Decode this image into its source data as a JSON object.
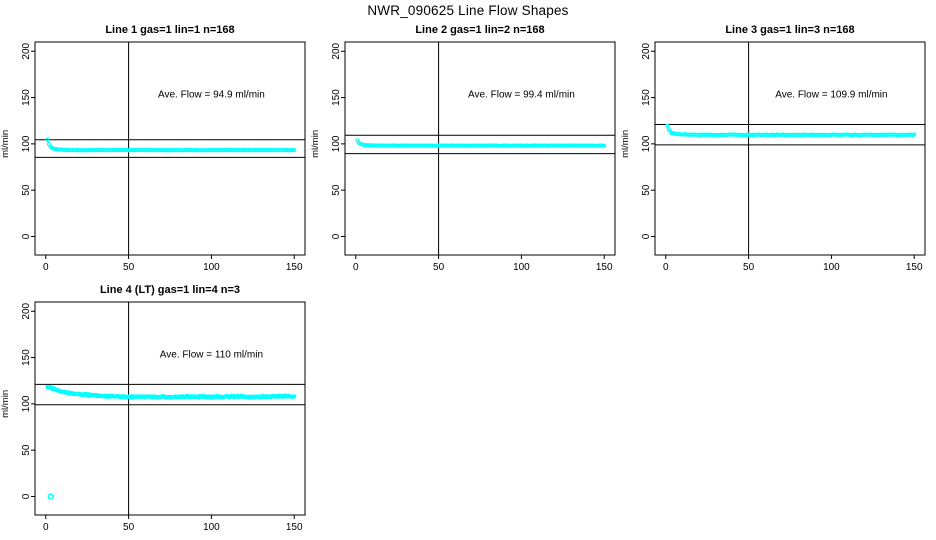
{
  "page_title": "NWR_090625  Line Flow Shapes",
  "colors": {
    "background": "#FFFFFF",
    "axis": "#000000",
    "points": "#00FFFF"
  },
  "chart_data": [
    {
      "type": "scatter",
      "title": "Line 1 gas=1 lin=1 n=168",
      "annotation": "Ave. Flow =  94.9  ml/min",
      "annotation_pos": [
        100,
        150
      ],
      "ave_flow": 94.9,
      "n": 168,
      "ylabel": "ml/min",
      "xlabel": "",
      "xlim": [
        -6.5,
        156.5
      ],
      "ylim": [
        -20,
        210
      ],
      "xticks": [
        0,
        50,
        100,
        150
      ],
      "yticks": [
        0,
        50,
        100,
        150,
        200
      ],
      "vline_x": 50,
      "hlines": [
        104.4,
        85.4
      ],
      "marker_color": "#00FFFF",
      "x_start": 1,
      "x_end": 150,
      "n_points": 168,
      "noise": 0.35,
      "keypoints": [
        [
          1,
          104.5
        ],
        [
          1.9,
          99.5
        ],
        [
          3,
          97
        ],
        [
          4,
          95.5
        ],
        [
          6,
          94.3
        ],
        [
          9,
          93.6
        ],
        [
          15,
          93.2
        ],
        [
          25,
          93.2
        ],
        [
          60,
          93.3
        ],
        [
          100,
          93.2
        ],
        [
          150,
          93.2
        ]
      ],
      "extra_points": []
    },
    {
      "type": "scatter",
      "title": "Line 2 gas=1 lin=2 n=168",
      "annotation": "Ave. Flow =  99.4  ml/min",
      "annotation_pos": [
        100,
        150
      ],
      "ave_flow": 99.4,
      "n": 168,
      "ylabel": "ml/min",
      "xlabel": "",
      "xlim": [
        -6.5,
        156.5
      ],
      "ylim": [
        -20,
        210
      ],
      "xticks": [
        0,
        50,
        100,
        150
      ],
      "yticks": [
        0,
        50,
        100,
        150,
        200
      ],
      "vline_x": 50,
      "hlines": [
        109.3,
        89.5
      ],
      "marker_color": "#00FFFF",
      "x_start": 1,
      "x_end": 150,
      "n_points": 168,
      "noise": 0.35,
      "keypoints": [
        [
          1,
          103.5
        ],
        [
          2,
          100.8
        ],
        [
          3,
          99.6
        ],
        [
          5,
          98.8
        ],
        [
          8,
          98.4
        ],
        [
          15,
          98.2
        ],
        [
          30,
          98.1
        ],
        [
          80,
          98.1
        ],
        [
          150,
          98
        ]
      ],
      "extra_points": []
    },
    {
      "type": "scatter",
      "title": "Line 3 gas=1 lin=3 n=168",
      "annotation": "Ave. Flow =  109.9  ml/min",
      "annotation_pos": [
        100,
        150
      ],
      "ave_flow": 109.9,
      "n": 168,
      "ylabel": "ml/min",
      "xlabel": "",
      "xlim": [
        -6.5,
        156.5
      ],
      "ylim": [
        -20,
        210
      ],
      "xticks": [
        0,
        50,
        100,
        150
      ],
      "yticks": [
        0,
        50,
        100,
        150,
        200
      ],
      "vline_x": 50,
      "hlines": [
        120.9,
        98.9
      ],
      "marker_color": "#00FFFF",
      "x_start": 1,
      "x_end": 150,
      "n_points": 168,
      "noise": 0.5,
      "keypoints": [
        [
          1,
          119.5
        ],
        [
          2,
          114.5
        ],
        [
          3,
          112.5
        ],
        [
          5,
          111
        ],
        [
          8,
          110.3
        ],
        [
          15,
          109.9
        ],
        [
          30,
          109.7
        ],
        [
          80,
          109.7
        ],
        [
          150,
          109.8
        ]
      ],
      "extra_points": []
    },
    {
      "type": "scatter",
      "title": "Line 4 (LT) gas=1 lin=4 n=3",
      "annotation": "Ave. Flow =  110  ml/min",
      "annotation_pos": [
        100,
        150
      ],
      "ave_flow": 110,
      "n": 3,
      "ylabel": "ml/min",
      "xlabel": "",
      "xlim": [
        -6.5,
        156.5
      ],
      "ylim": [
        -20,
        210
      ],
      "xticks": [
        0,
        50,
        100,
        150
      ],
      "yticks": [
        0,
        50,
        100,
        150,
        200
      ],
      "vline_x": 50,
      "hlines": [
        121,
        99
      ],
      "marker_color": "#00FFFF",
      "x_start": 1,
      "x_end": 150,
      "n_points": 340,
      "noise": 1.1,
      "keypoints": [
        [
          1,
          119
        ],
        [
          2,
          118
        ],
        [
          4,
          116.5
        ],
        [
          7,
          114.5
        ],
        [
          10,
          113
        ],
        [
          15,
          111.5
        ],
        [
          20,
          110.5
        ],
        [
          28,
          109.3
        ],
        [
          38,
          108.2
        ],
        [
          50,
          107.5
        ],
        [
          62,
          107.9
        ],
        [
          75,
          107.2
        ],
        [
          88,
          107.9
        ],
        [
          100,
          107.4
        ],
        [
          112,
          108
        ],
        [
          124,
          107.4
        ],
        [
          136,
          107.9
        ],
        [
          150,
          108.3
        ]
      ],
      "extra_points": [
        [
          3,
          0
        ]
      ]
    }
  ]
}
